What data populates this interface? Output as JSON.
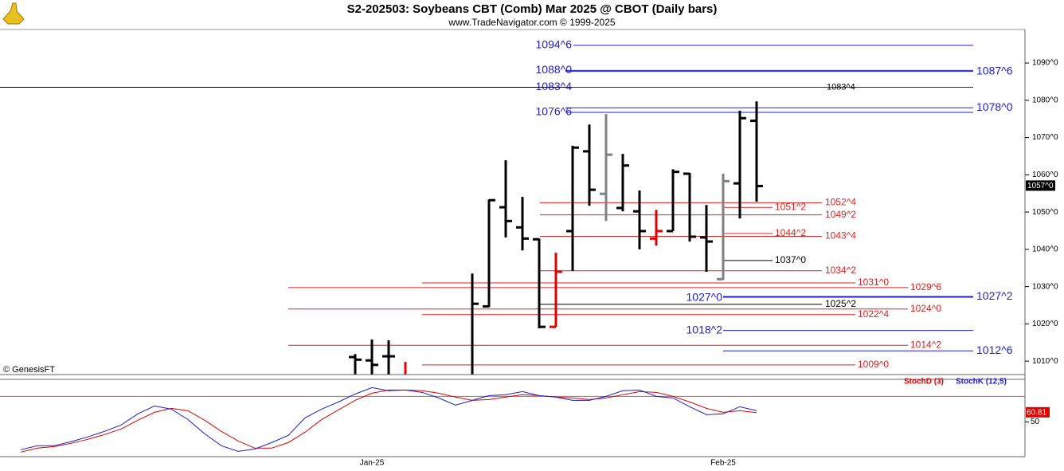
{
  "header": {
    "title": "S2-202503:  Soybeans CBT (Comb) Mar 2025 @ CBOT  (Daily bars)",
    "subtitle": "www.TradeNavigator.com © 1999-2025",
    "copyright": "© GenesisFT"
  },
  "chart_data": [
    {
      "type": "ohlc",
      "open": [
        null,
        null,
        null,
        null,
        null,
        null,
        null,
        null,
        null,
        null,
        null,
        null,
        null,
        null,
        null,
        null,
        null,
        null,
        null,
        null,
        1011.1,
        1010.2,
        1011.3,
        null,
        null,
        null,
        null,
        null,
        1024.7,
        1051.3,
        1045.9,
        1042.7,
        1019.2,
        1044.9,
        1066.3,
        1054.9,
        1051.1,
        1050.2,
        1042.9,
        1044.9,
        1060.3,
        1043.2,
        1032,
        1057.7,
        1074.5
      ],
      "high": [
        null,
        null,
        null,
        null,
        null,
        null,
        null,
        null,
        null,
        null,
        null,
        null,
        null,
        null,
        null,
        null,
        null,
        null,
        null,
        null,
        1011.9,
        1015.8,
        1015.6,
        1009.8,
        null,
        null,
        null,
        1033.5,
        1053.4,
        1063.9,
        1054.1,
        1042.9,
        1039.1,
        1067.8,
        1073.5,
        1076.3,
        1065.6,
        1055.8,
        1050.6,
        1061.5,
        1060.5,
        1051.9,
        1060.3,
        1077.2,
        1079.7
      ],
      "low": [
        null,
        null,
        null,
        null,
        null,
        null,
        null,
        null,
        null,
        null,
        null,
        null,
        null,
        null,
        null,
        null,
        null,
        null,
        null,
        null,
        1006.5,
        1006.5,
        1006.5,
        1006.5,
        null,
        null,
        null,
        1006.5,
        1024.5,
        1043.2,
        1039.7,
        1018.8,
        1019.2,
        1034.2,
        1051.7,
        1047.6,
        1050.2,
        1040,
        1041,
        1044.9,
        1042.1,
        1034,
        1031.8,
        1048.3,
        1052.8
      ],
      "close": [
        null,
        null,
        null,
        null,
        null,
        null,
        null,
        null,
        null,
        null,
        null,
        null,
        null,
        null,
        null,
        null,
        null,
        null,
        null,
        null,
        1010.4,
        1009,
        1011.3,
        null,
        null,
        null,
        null,
        1025.4,
        1053.2,
        1047.6,
        1042.9,
        1019.2,
        1034,
        1067.3,
        1056,
        1065.4,
        1062.5,
        1044.9,
        1044.9,
        1060.8,
        1043.4,
        1042.1,
        1058.3,
        1075.2,
        1057
      ],
      "bar_colors": [
        null,
        null,
        null,
        null,
        null,
        null,
        null,
        null,
        null,
        null,
        null,
        null,
        null,
        null,
        null,
        null,
        null,
        null,
        null,
        null,
        "#000000",
        "#000000",
        "#000000",
        "#e00000",
        null,
        null,
        null,
        "#000000",
        "#000000",
        "#000000",
        "#000000",
        "#000000",
        "#e00000",
        "#000000",
        "#000000",
        "#808080",
        "#000000",
        "#000000",
        "#e00000",
        "#000000",
        "#000000",
        "#000000",
        "#808080",
        "#000000",
        "#000000"
      ],
      "last_price": {
        "value": 1057,
        "label": "1057^0"
      },
      "ylim": [
        1006.4,
        1099
      ],
      "yticks": [
        {
          "value": 1010,
          "label": "1010^0"
        },
        {
          "value": 1020,
          "label": "1020^0"
        },
        {
          "value": 1030,
          "label": "1030^0"
        },
        {
          "value": 1040,
          "label": "1040^0"
        },
        {
          "value": 1050,
          "label": "1050^0"
        },
        {
          "value": 1060,
          "label": "1060^0"
        },
        {
          "value": 1070,
          "label": "1070^0"
        },
        {
          "value": 1080,
          "label": "1080^0"
        },
        {
          "value": 1090,
          "label": "1090^0"
        }
      ],
      "levels": [
        {
          "value": 1094.75,
          "label": "1094^6",
          "color": "#1c1cd8"
        },
        {
          "value": 1088,
          "label": "1088^0",
          "color": "#1c1cd8"
        },
        {
          "value": 1087.75,
          "label": "1087^6",
          "color": "#1c1cd8"
        },
        {
          "value": 1083.5,
          "label": "1083^4",
          "color": "#1c1cd8"
        },
        {
          "value": 1083.5,
          "label": "1083^4",
          "color": "#000000"
        },
        {
          "value": 1078,
          "label": "1078^0",
          "color": "#1c1cd8"
        },
        {
          "value": 1076.75,
          "label": "1076^6",
          "color": "#1c1cd8"
        },
        {
          "value": 1052.5,
          "label": "1052^4",
          "color": "#e02020"
        },
        {
          "value": 1051.25,
          "label": "1051^2",
          "color": "#e02020"
        },
        {
          "value": 1049.25,
          "label": "1049^2",
          "color": "#e02020"
        },
        {
          "value": 1044.25,
          "label": "1044^2",
          "color": "#e02020"
        },
        {
          "value": 1043.5,
          "label": "1043^4",
          "color": "#e02020"
        },
        {
          "value": 1037,
          "label": "1037^0",
          "color": "#000000"
        },
        {
          "value": 1034.25,
          "label": "1034^2",
          "color": "#e02020"
        },
        {
          "value": 1031,
          "label": "1031^0",
          "color": "#e02020"
        },
        {
          "value": 1029.75,
          "label": "1029^6",
          "color": "#e02020"
        },
        {
          "value": 1027,
          "label": "1027^0",
          "color": "#1c1cd8"
        },
        {
          "value": 1027.25,
          "label": "1027^2",
          "color": "#1c1cd8"
        },
        {
          "value": 1025.25,
          "label": "1025^2",
          "color": "#000000"
        },
        {
          "value": 1024,
          "label": "1024^0",
          "color": "#e02020"
        },
        {
          "value": 1022.5,
          "label": "1022^4",
          "color": "#e02020"
        },
        {
          "value": 1018.25,
          "label": "1018^2",
          "color": "#1c1cd8"
        },
        {
          "value": 1014.25,
          "label": "1014^2",
          "color": "#e02020"
        },
        {
          "value": 1012.75,
          "label": "1012^6",
          "color": "#1c1cd8"
        },
        {
          "value": 1009,
          "label": "1009^0",
          "color": "#e02020"
        }
      ]
    },
    {
      "type": "line",
      "categories": [
        null,
        null,
        null,
        null,
        null,
        null,
        null,
        null,
        null,
        null,
        null,
        null,
        null,
        null,
        null,
        null,
        null,
        null,
        null,
        null,
        null,
        "Jan-25",
        null,
        null,
        null,
        null,
        null,
        null,
        null,
        null,
        null,
        null,
        null,
        null,
        null,
        null,
        null,
        null,
        null,
        null,
        null,
        null,
        "Feb-25",
        null,
        null
      ],
      "series": [
        {
          "name": "StochD (3)",
          "color": "#e00000",
          "values": [
            14.4,
            19.1,
            20.9,
            24.7,
            29.4,
            35,
            41.6,
            51.9,
            61.2,
            65.9,
            63.1,
            51.9,
            38.8,
            27.5,
            19.1,
            19.1,
            25.6,
            37.8,
            52.8,
            64.1,
            75.3,
            83.7,
            87.5,
            87.5,
            86.6,
            83.7,
            79.1,
            75.3,
            76.2,
            79.1,
            81.9,
            80.9,
            79.1,
            78.1,
            76.2,
            78.1,
            81.9,
            85.6,
            84.7,
            80,
            73.4,
            65.9,
            61.2,
            63.1,
            60.81
          ]
        },
        {
          "name": "StochK (12,5)",
          "color": "#1c1cd8",
          "values": [
            17.2,
            21.9,
            21.9,
            26.6,
            32.2,
            38.8,
            46.3,
            59.4,
            68.7,
            65,
            52.8,
            35.9,
            21.9,
            15.3,
            18.1,
            25.6,
            34.1,
            54.7,
            65,
            73.4,
            82.8,
            90.3,
            86.6,
            87.5,
            84.7,
            78.1,
            69.7,
            75.3,
            80.9,
            81.9,
            85.6,
            80.9,
            79.1,
            75.3,
            75.3,
            80,
            86.6,
            87.5,
            80,
            78.1,
            67.8,
            58.4,
            59.4,
            67.8,
            63.1
          ]
        }
      ],
      "hline": 80,
      "ylim": [
        10,
        100
      ],
      "yticks": [
        50
      ]
    }
  ]
}
